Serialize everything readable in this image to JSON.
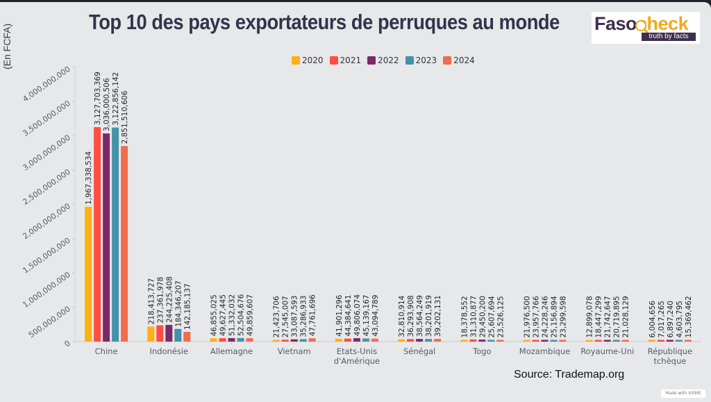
{
  "header": {
    "title": "Top 10 des pays exportateurs de perruques au monde",
    "logo": {
      "brand_part1": "Faso",
      "brand_part2": "check",
      "tagline": "truth by facts"
    }
  },
  "footer": {
    "source": "Source: Trademap.org",
    "made_with": "Made with VISME"
  },
  "chart_data": {
    "type": "bar",
    "title": "Top 10 des pays exportateurs de perruques au monde",
    "ylabel": "(En FCFA)",
    "xlabel": "",
    "ylim": [
      0,
      4000000000
    ],
    "yticks": [
      0,
      500000000,
      1000000000,
      1500000000,
      2000000000,
      2500000000,
      3000000000,
      3500000000,
      4000000000
    ],
    "ytick_labels": [
      "0",
      "500,000,000",
      "1,000,000,000",
      "1,500,000,000",
      "2,000,000,000",
      "2,500,000,000",
      "3,000,000,000",
      "3,500,000,000",
      "4,000,000,000"
    ],
    "grid": false,
    "legend_position": "top-center",
    "categories": [
      "Chine",
      "Indonésie",
      "Allemagne",
      "Vietnam",
      "Etats-Unis d'Amérique",
      "Sénégal",
      "Togo",
      "Mozambique",
      "Royaume-Uni",
      "République tchèque"
    ],
    "category_lines": [
      [
        "Chine"
      ],
      [
        "Indonésie"
      ],
      [
        "Allemagne"
      ],
      [
        "Vietnam"
      ],
      [
        "Etats-Unis",
        "d'Amérique"
      ],
      [
        "Sénégal"
      ],
      [
        "Togo"
      ],
      [
        "Mozambique"
      ],
      [
        "Royaume-Uni"
      ],
      [
        "République",
        "tchèque"
      ]
    ],
    "series": [
      {
        "name": "2020",
        "color": "#ffb012",
        "values": [
          1967338534,
          218413727,
          46855025,
          21423706,
          41901296,
          32810914,
          18378552,
          21976500,
          12899078,
          6004656
        ]
      },
      {
        "name": "2021",
        "color": "#ff4e42",
        "values": [
          3127703369,
          237361978,
          49627445,
          27545007,
          44384641,
          36293908,
          31310877,
          23957766,
          18447299,
          7017265
        ]
      },
      {
        "name": "2022",
        "color": "#7c2968",
        "values": [
          3036000506,
          244225408,
          51332032,
          33087593,
          49806074,
          38564249,
          29450200,
          24228246,
          21742647,
          6897240
        ]
      },
      {
        "name": "2023",
        "color": "#4592a8",
        "values": [
          3122856142,
          184346207,
          52504676,
          35286933,
          45139167,
          38201919,
          25607694,
          25156894,
          20719895,
          4603795
        ]
      },
      {
        "name": "2024",
        "color": "#f26b4d",
        "values": [
          2851510606,
          142185137,
          49859607,
          47761696,
          43094789,
          39202131,
          23526125,
          23299598,
          21028129,
          15369462
        ]
      }
    ]
  }
}
